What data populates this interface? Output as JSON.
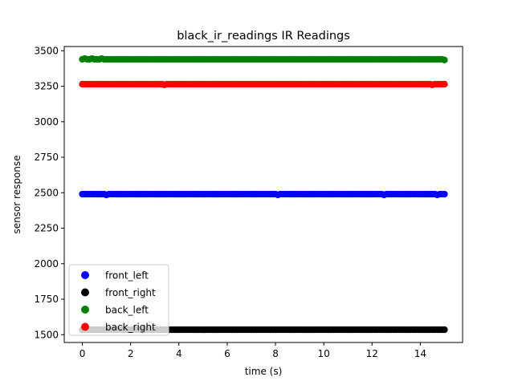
{
  "chart_data": {
    "type": "scatter",
    "title": "black_ir_readings IR Readings",
    "xlabel": "time (s)",
    "ylabel": "sensor response",
    "xlim": [
      -0.75,
      15.75
    ],
    "ylim": [
      1445,
      3530
    ],
    "xticks": [
      0,
      2,
      4,
      6,
      8,
      10,
      12,
      14
    ],
    "yticks": [
      1500,
      1750,
      2000,
      2250,
      2500,
      2750,
      3000,
      3250,
      3500
    ],
    "grid": false,
    "legend_position": "lower-left",
    "x_range": [
      0,
      15
    ],
    "series": [
      {
        "name": "front_left",
        "color": "#0000ff",
        "approx_value": 2490,
        "dips": [
          {
            "x": 1.0,
            "y": 2485
          },
          {
            "x": 8.1,
            "y": 2485
          },
          {
            "x": 12.5,
            "y": 2485
          },
          {
            "x": 14.7,
            "y": 2485
          }
        ]
      },
      {
        "name": "front_right",
        "color": "#000000",
        "approx_value": 1535,
        "dips": []
      },
      {
        "name": "back_left",
        "color": "#008000",
        "approx_value": 3440,
        "dips": [
          {
            "x": 0.1,
            "y": 3445
          },
          {
            "x": 0.4,
            "y": 3445
          },
          {
            "x": 0.8,
            "y": 3445
          },
          {
            "x": 15.0,
            "y": 3435
          }
        ]
      },
      {
        "name": "back_right",
        "color": "#ff0000",
        "approx_value": 3265,
        "dips": [
          {
            "x": 3.4,
            "y": 3260
          },
          {
            "x": 14.5,
            "y": 3260
          }
        ]
      }
    ]
  }
}
